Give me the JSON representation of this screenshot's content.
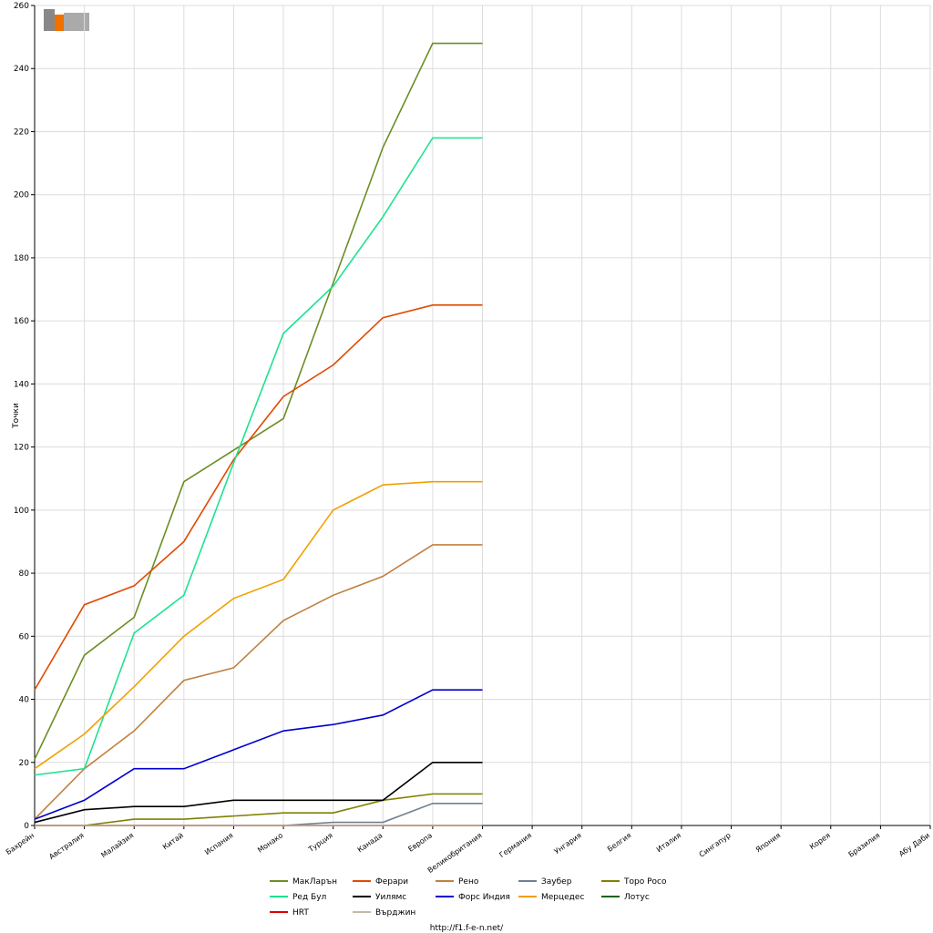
{
  "chart_data": {
    "type": "line",
    "y_label": "Точки",
    "footer": "http://f1.f-e-n.net/",
    "categories": [
      "Бахрейн",
      "Австралия",
      "Малайзия",
      "Китай",
      "Испания",
      "Монако",
      "Турция",
      "Канада",
      "Европа",
      "Великобритания",
      "Германия",
      "Унгария",
      "Белгия",
      "Италия",
      "Сингапур",
      "Япония",
      "Корея",
      "Бразилия",
      "Абу Даби"
    ],
    "ylim": [
      0,
      260
    ],
    "yticks": [
      0,
      20,
      40,
      60,
      80,
      100,
      120,
      140,
      160,
      180,
      200,
      220,
      240,
      260
    ],
    "grid": true,
    "legend": "bottom",
    "series": [
      {
        "name": "МакЛарън",
        "color": "#6b8e23",
        "values": [
          21,
          54,
          66,
          109,
          119,
          129,
          172,
          215,
          248,
          248,
          null,
          null,
          null,
          null,
          null,
          null,
          null,
          null,
          null
        ]
      },
      {
        "name": "Ферари",
        "color": "#e04a00",
        "values": [
          43,
          70,
          76,
          90,
          116,
          136,
          146,
          161,
          165,
          165,
          null,
          null,
          null,
          null,
          null,
          null,
          null,
          null,
          null
        ]
      },
      {
        "name": "Рено",
        "color": "#c08040",
        "values": [
          2,
          18,
          30,
          46,
          50,
          65,
          73,
          79,
          89,
          89,
          null,
          null,
          null,
          null,
          null,
          null,
          null,
          null,
          null
        ]
      },
      {
        "name": "Заубер",
        "color": "#708090",
        "values": [
          0,
          0,
          0,
          0,
          0,
          0,
          1,
          1,
          7,
          7,
          null,
          null,
          null,
          null,
          null,
          null,
          null,
          null,
          null
        ]
      },
      {
        "name": "Торо Росо",
        "color": "#808000",
        "values": [
          0,
          0,
          2,
          2,
          3,
          4,
          4,
          8,
          10,
          10,
          null,
          null,
          null,
          null,
          null,
          null,
          null,
          null,
          null
        ]
      },
      {
        "name": "Ред Бул",
        "color": "#1de28f",
        "values": [
          16,
          18,
          61,
          73,
          115,
          156,
          171,
          193,
          218,
          218,
          null,
          null,
          null,
          null,
          null,
          null,
          null,
          null,
          null
        ]
      },
      {
        "name": "Уилямс",
        "color": "#000000",
        "values": [
          1,
          5,
          6,
          6,
          8,
          8,
          8,
          8,
          20,
          20,
          null,
          null,
          null,
          null,
          null,
          null,
          null,
          null,
          null
        ]
      },
      {
        "name": "Форс Индия",
        "color": "#0000d0",
        "values": [
          2,
          8,
          18,
          18,
          24,
          30,
          32,
          35,
          43,
          43,
          null,
          null,
          null,
          null,
          null,
          null,
          null,
          null,
          null
        ]
      },
      {
        "name": "Мерцедес",
        "color": "#f0a000",
        "values": [
          18,
          29,
          44,
          60,
          72,
          78,
          100,
          108,
          109,
          109,
          null,
          null,
          null,
          null,
          null,
          null,
          null,
          null,
          null
        ]
      },
      {
        "name": "Лотус",
        "color": "#006400",
        "values": [
          0,
          0,
          0,
          0,
          0,
          0,
          0,
          0,
          0,
          0,
          null,
          null,
          null,
          null,
          null,
          null,
          null,
          null,
          null
        ]
      },
      {
        "name": "HRT",
        "color": "#e00000",
        "values": [
          0,
          0,
          0,
          0,
          0,
          0,
          0,
          0,
          0,
          0,
          null,
          null,
          null,
          null,
          null,
          null,
          null,
          null,
          null
        ]
      },
      {
        "name": "Върджин",
        "color": "#c8b8a8",
        "values": [
          0,
          0,
          0,
          0,
          0,
          0,
          0,
          0,
          0,
          0,
          null,
          null,
          null,
          null,
          null,
          null,
          null,
          null,
          null
        ]
      }
    ]
  }
}
